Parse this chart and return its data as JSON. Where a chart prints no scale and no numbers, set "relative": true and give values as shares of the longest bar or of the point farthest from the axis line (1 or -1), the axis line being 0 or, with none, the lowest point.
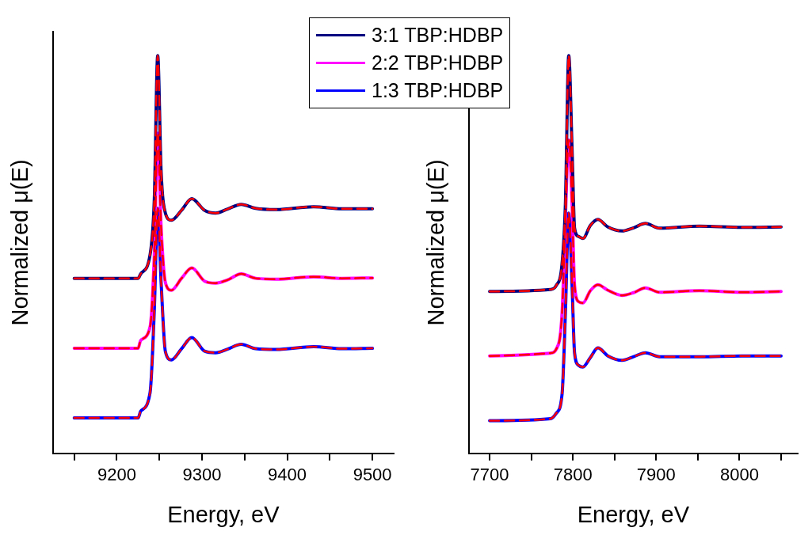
{
  "chart_data": [
    {
      "type": "line",
      "relative": true,
      "xlabel": "Energy, eV",
      "ylabel": "Normalized μ(E)",
      "tick_labels": "x",
      "legend": "top",
      "marker": "none",
      "x": [
        9150,
        9225,
        9228,
        9239,
        9244,
        9248,
        9252,
        9257,
        9264,
        9276,
        9288,
        9303,
        9316,
        9330,
        9346,
        9363,
        9387,
        9431,
        9464,
        9500
      ],
      "xlim": [
        9125,
        9525
      ],
      "xticks": [
        {
          "value": 9150,
          "label": null
        },
        9200,
        {
          "value": 9250,
          "label": null
        },
        9300,
        {
          "value": 9350,
          "label": null
        },
        9400,
        {
          "value": 9450,
          "label": null
        },
        9500
      ],
      "series": [
        {
          "name": "3:1 TBP:HDBP",
          "color": "#000080",
          "line_style": "solid",
          "values": [
            0.44,
            0.44,
            0.451,
            0.499,
            0.638,
            1,
            0.708,
            0.604,
            0.586,
            0.611,
            0.64,
            0.611,
            0.604,
            0.614,
            0.626,
            0.616,
            0.613,
            0.62,
            0.615,
            0.615
          ]
        },
        {
          "name": "2:2 TBP:HDBP",
          "color": "#ff00ff",
          "line_style": "solid",
          "values": [
            0.264,
            0.264,
            0.284,
            0.318,
            0.499,
            0.805,
            0.569,
            0.43,
            0.41,
            0.44,
            0.466,
            0.433,
            0.428,
            0.436,
            0.451,
            0.44,
            0.438,
            0.444,
            0.44,
            0.441
          ]
        },
        {
          "name": "1:3 TBP:HDBP",
          "color": "#0000ff",
          "line_style": "solid",
          "values": [
            0.089,
            0.089,
            0.106,
            0.152,
            0.36,
            0.616,
            0.43,
            0.256,
            0.235,
            0.263,
            0.291,
            0.257,
            0.253,
            0.262,
            0.274,
            0.263,
            0.261,
            0.268,
            0.263,
            0.264
          ]
        },
        {
          "color": "#ff0000",
          "line_style": "dashed",
          "values": [
            0.44,
            0.44,
            0.451,
            0.499,
            0.638,
            1,
            0.708,
            0.604,
            0.586,
            0.611,
            0.64,
            0.611,
            0.604,
            0.614,
            0.626,
            0.616,
            0.613,
            0.62,
            0.615,
            0.615
          ]
        },
        {
          "color": "#ff0000",
          "line_style": "dashed",
          "values": [
            0.264,
            0.264,
            0.284,
            0.318,
            0.499,
            0.805,
            0.569,
            0.43,
            0.41,
            0.44,
            0.466,
            0.433,
            0.428,
            0.436,
            0.451,
            0.44,
            0.438,
            0.444,
            0.44,
            0.441
          ]
        },
        {
          "color": "#ff0000",
          "line_style": "dashed",
          "values": [
            0.089,
            0.089,
            0.106,
            0.152,
            0.36,
            0.616,
            0.43,
            0.256,
            0.235,
            0.263,
            0.291,
            0.257,
            0.253,
            0.262,
            0.274,
            0.263,
            0.261,
            0.268,
            0.263,
            0.264
          ]
        }
      ]
    },
    {
      "type": "line",
      "relative": true,
      "xlabel": "Energy, eV",
      "ylabel": "Normalized μ(E)",
      "tick_labels": "x",
      "marker": "none",
      "x": [
        7700,
        7773,
        7780,
        7787,
        7791,
        7795,
        7799,
        7802,
        7807,
        7812,
        7821,
        7830,
        7842,
        7859,
        7873,
        7887,
        7904,
        7952,
        8003,
        8050
      ],
      "xlim": [
        7675,
        8070
      ],
      "xticks": [
        7700,
        {
          "value": 7750,
          "label": null
        },
        7800,
        {
          "value": 7850,
          "label": null
        },
        7900,
        {
          "value": 7950,
          "label": null
        },
        8000,
        {
          "value": 8050,
          "label": null
        }
      ],
      "series": [
        {
          "color": "#000080",
          "line_style": "solid",
          "values": [
            0.407,
            0.412,
            0.422,
            0.477,
            0.627,
            1,
            0.764,
            0.566,
            0.545,
            0.54,
            0.573,
            0.588,
            0.569,
            0.559,
            0.567,
            0.578,
            0.566,
            0.571,
            0.568,
            0.569
          ]
        },
        {
          "color": "#ff00ff",
          "line_style": "solid",
          "values": [
            0.245,
            0.252,
            0.262,
            0.354,
            0.593,
            0.788,
            0.627,
            0.422,
            0.381,
            0.378,
            0.409,
            0.424,
            0.41,
            0.397,
            0.404,
            0.416,
            0.405,
            0.409,
            0.405,
            0.407
          ]
        },
        {
          "color": "#0000ff",
          "line_style": "solid",
          "values": [
            0.082,
            0.087,
            0.101,
            0.149,
            0.354,
            0.604,
            0.422,
            0.252,
            0.221,
            0.217,
            0.241,
            0.265,
            0.245,
            0.234,
            0.243,
            0.253,
            0.243,
            0.243,
            0.245,
            0.245
          ]
        },
        {
          "color": "#ff0000",
          "line_style": "dashed",
          "values": [
            0.407,
            0.412,
            0.422,
            0.477,
            0.627,
            1,
            0.764,
            0.566,
            0.545,
            0.54,
            0.573,
            0.588,
            0.569,
            0.559,
            0.567,
            0.578,
            0.566,
            0.571,
            0.568,
            0.569
          ]
        },
        {
          "color": "#ff0000",
          "line_style": "dashed",
          "values": [
            0.245,
            0.252,
            0.262,
            0.354,
            0.593,
            0.788,
            0.627,
            0.422,
            0.381,
            0.378,
            0.409,
            0.424,
            0.41,
            0.397,
            0.404,
            0.416,
            0.405,
            0.409,
            0.405,
            0.407
          ]
        },
        {
          "color": "#ff0000",
          "line_style": "dashed",
          "values": [
            0.082,
            0.087,
            0.101,
            0.149,
            0.354,
            0.604,
            0.422,
            0.252,
            0.221,
            0.217,
            0.241,
            0.265,
            0.245,
            0.234,
            0.243,
            0.253,
            0.243,
            0.243,
            0.245,
            0.245
          ]
        }
      ]
    }
  ]
}
